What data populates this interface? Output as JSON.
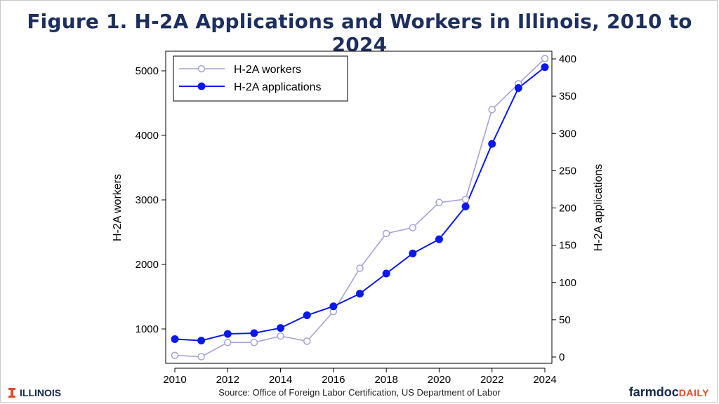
{
  "title": "Figure 1. H-2A Applications and Workers in Illinois, 2010 to 2024",
  "source": "Source: Office of Foreign Labor Certification, US Department of Labor",
  "logo_left": "ILLINOIS",
  "logo_right": {
    "main": "farmdoc",
    "accent": "DAILY"
  },
  "colors": {
    "title": "#1d2f5e",
    "workers": "#a6a3d6",
    "applications": "#0a18f0",
    "brand_orange": "#e84a27"
  },
  "chart_data": {
    "type": "line",
    "x": [
      2010,
      2011,
      2012,
      2013,
      2014,
      2015,
      2016,
      2017,
      2018,
      2019,
      2020,
      2021,
      2022,
      2023,
      2024
    ],
    "x_ticks": [
      "2010",
      "2012",
      "2014",
      "2016",
      "2018",
      "2020",
      "2022",
      "2024"
    ],
    "xlim": [
      2010,
      2024
    ],
    "series": [
      {
        "name": "H-2A workers",
        "axis": "left",
        "values": [
          590,
          570,
          790,
          790,
          890,
          810,
          1270,
          1940,
          2480,
          2570,
          2960,
          3010,
          4400,
          4800,
          5190
        ]
      },
      {
        "name": "H-2A applications",
        "axis": "right",
        "values": [
          24,
          22,
          31,
          32,
          39,
          56,
          68,
          85,
          112,
          139,
          158,
          202,
          286,
          361,
          389
        ]
      }
    ],
    "ylabel_left": "H-2A workers",
    "ylim_left": [
      500,
      5200
    ],
    "yticks_left": [
      "1000",
      "2000",
      "3000",
      "4000",
      "5000"
    ],
    "ylabel_right": "H-2A applications",
    "ylim_right": [
      0,
      400
    ],
    "yticks_right": [
      "0",
      "50",
      "100",
      "150",
      "200",
      "250",
      "300",
      "350",
      "400"
    ],
    "legend": "top-left",
    "grid": false
  }
}
